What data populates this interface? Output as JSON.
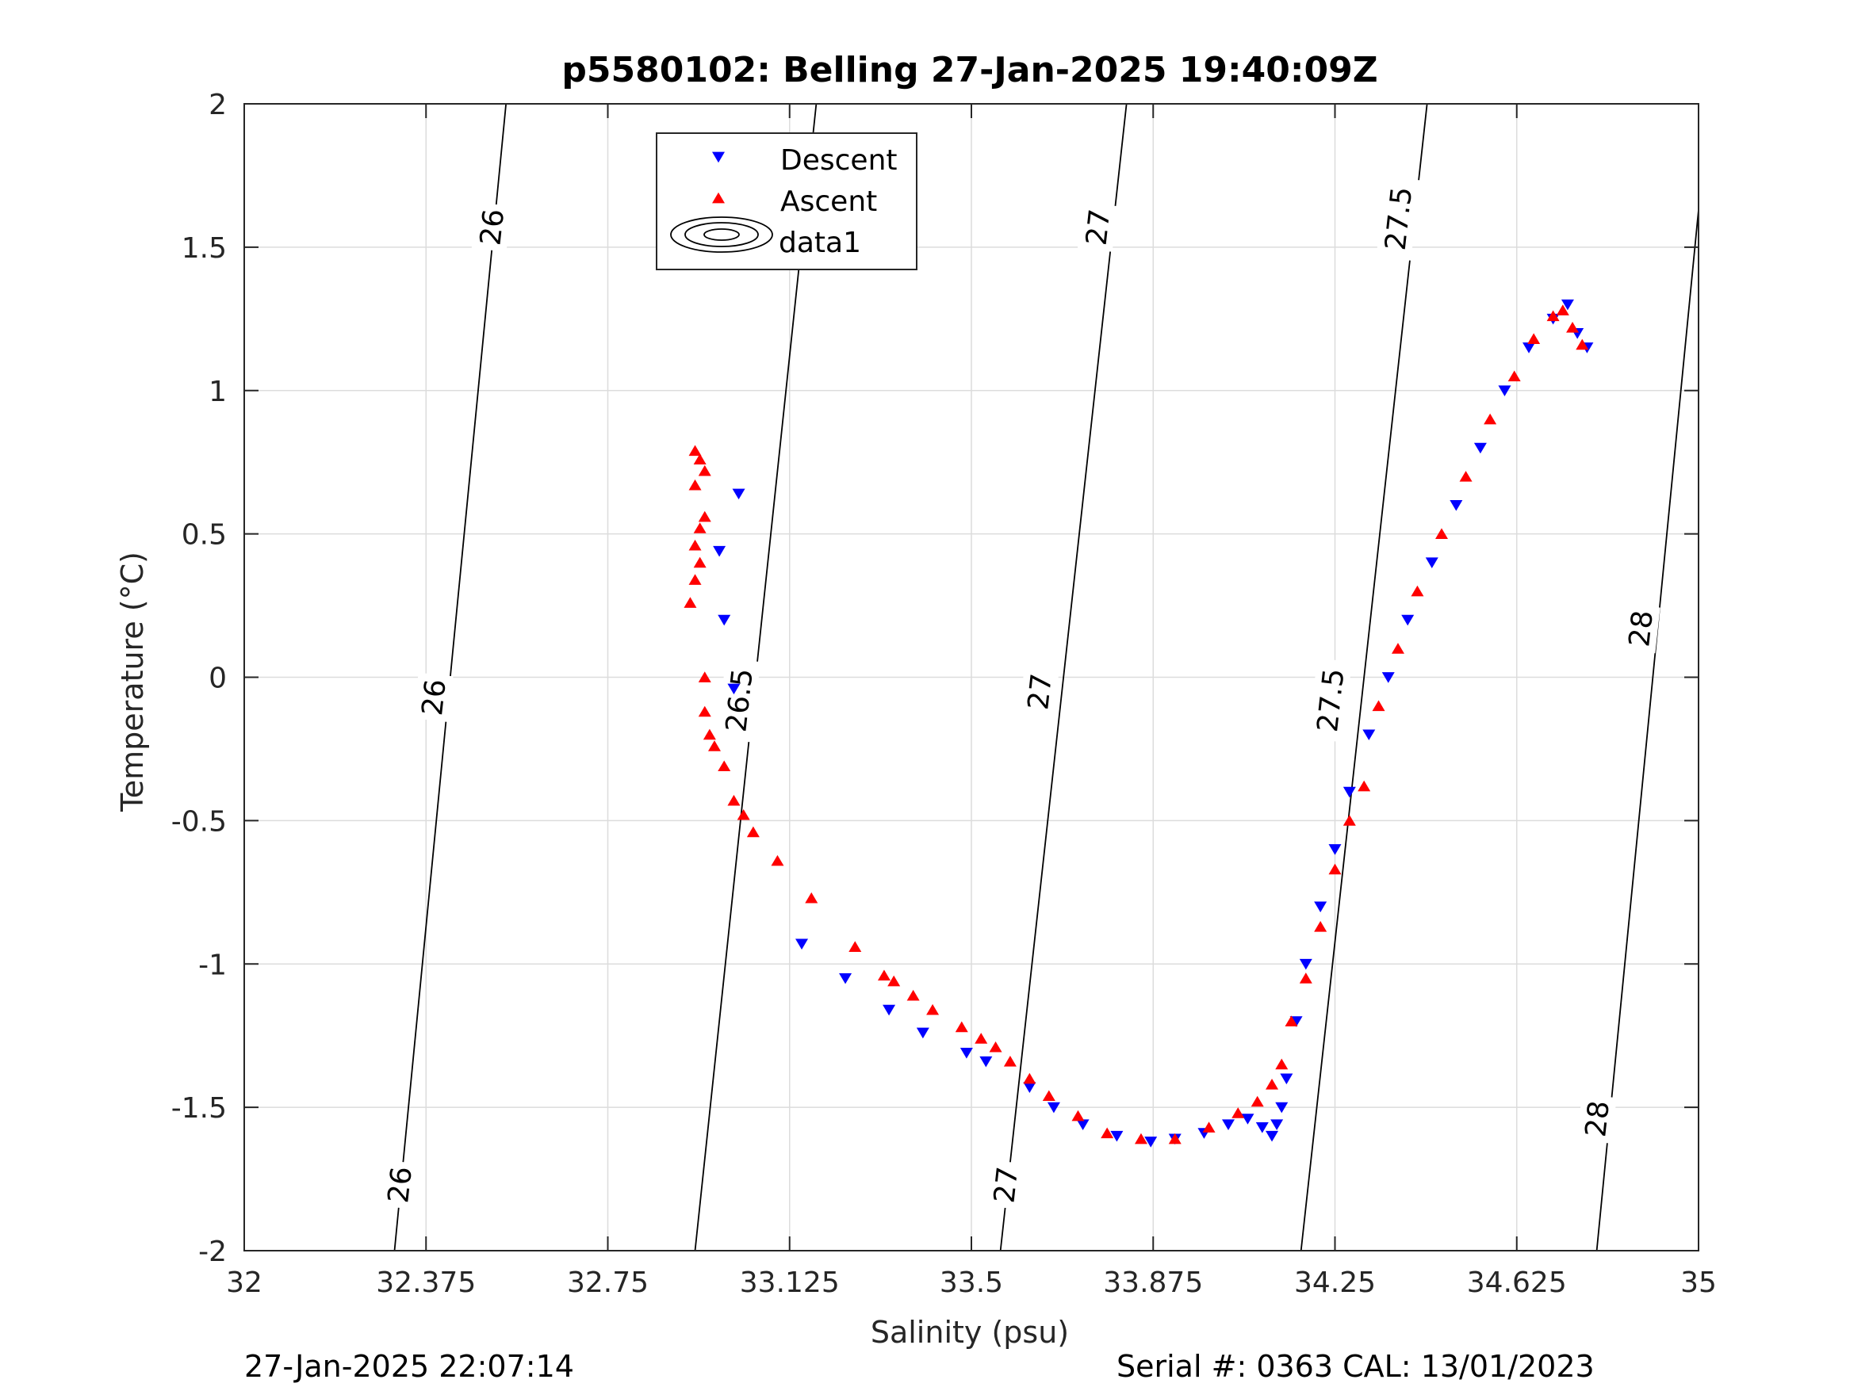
{
  "chart_data": {
    "type": "scatter",
    "title": "p5580102: Belling 27-Jan-2025 19:40:09Z",
    "xlabel": "Salinity (psu)",
    "ylabel": "Temperature (°C)",
    "xlim": [
      32,
      35
    ],
    "ylim": [
      -2,
      2
    ],
    "xticks": [
      "32",
      "32.375",
      "32.75",
      "33.125",
      "33.5",
      "33.875",
      "34.25",
      "34.625",
      "35"
    ],
    "yticks": [
      "-2",
      "-1.5",
      "-1",
      "-0.5",
      "0",
      "0.5",
      "1",
      "1.5",
      "2"
    ],
    "grid": true,
    "legend": {
      "placement": "top-center",
      "entries": [
        "Descent",
        "Ascent",
        "data1"
      ]
    },
    "colors": {
      "descent": "#0000ff",
      "ascent": "#ff0000",
      "contour": "#000000"
    },
    "contours": [
      {
        "level": "26",
        "line": [
          [
            32.31,
            -2
          ],
          [
            32.54,
            2
          ]
        ]
      },
      {
        "level": "26.5",
        "line": [
          [
            32.93,
            -2
          ],
          [
            33.18,
            2
          ]
        ]
      },
      {
        "level": "27",
        "line": [
          [
            33.56,
            -2
          ],
          [
            33.82,
            2
          ]
        ]
      },
      {
        "level": "27.5",
        "line": [
          [
            34.18,
            -2
          ],
          [
            34.44,
            2
          ]
        ]
      },
      {
        "level": "28",
        "line": [
          [
            34.79,
            -2
          ],
          [
            35.0,
            1.63
          ]
        ]
      }
    ],
    "contour_labels": [
      {
        "text": "26",
        "s": 32.51,
        "t": 1.57
      },
      {
        "text": "26",
        "s": 32.39,
        "t": -0.07
      },
      {
        "text": "26",
        "s": 32.32,
        "t": -1.77
      },
      {
        "text": "26.5",
        "s": 33.12,
        "t": 1.58
      },
      {
        "text": "26.5",
        "s": 33.02,
        "t": -0.08
      },
      {
        "text": "27",
        "s": 33.76,
        "t": 1.57
      },
      {
        "text": "27",
        "s": 33.64,
        "t": -0.05
      },
      {
        "text": "27",
        "s": 33.57,
        "t": -1.77
      },
      {
        "text": "27.5",
        "s": 34.38,
        "t": 1.6
      },
      {
        "text": "27.5",
        "s": 34.24,
        "t": -0.08
      },
      {
        "text": "28",
        "s": 34.88,
        "t": 0.17
      },
      {
        "text": "28",
        "s": 34.79,
        "t": -1.54
      }
    ],
    "series": [
      {
        "name": "Descent",
        "marker": "triangle-down",
        "points": [
          [
            33.02,
            0.64
          ],
          [
            32.98,
            0.44
          ],
          [
            32.99,
            0.2
          ],
          [
            33.01,
            -0.04
          ],
          [
            33.15,
            -0.93
          ],
          [
            33.24,
            -1.05
          ],
          [
            33.33,
            -1.16
          ],
          [
            33.4,
            -1.24
          ],
          [
            33.49,
            -1.31
          ],
          [
            33.53,
            -1.34
          ],
          [
            33.62,
            -1.43
          ],
          [
            33.67,
            -1.5
          ],
          [
            33.73,
            -1.56
          ],
          [
            33.8,
            -1.6
          ],
          [
            33.87,
            -1.62
          ],
          [
            33.92,
            -1.61
          ],
          [
            33.98,
            -1.59
          ],
          [
            34.03,
            -1.56
          ],
          [
            34.07,
            -1.54
          ],
          [
            34.1,
            -1.57
          ],
          [
            34.12,
            -1.6
          ],
          [
            34.13,
            -1.56
          ],
          [
            34.14,
            -1.5
          ],
          [
            34.15,
            -1.4
          ],
          [
            34.17,
            -1.2
          ],
          [
            34.19,
            -1.0
          ],
          [
            34.22,
            -0.8
          ],
          [
            34.25,
            -0.6
          ],
          [
            34.28,
            -0.4
          ],
          [
            34.32,
            -0.2
          ],
          [
            34.36,
            0.0
          ],
          [
            34.4,
            0.2
          ],
          [
            34.45,
            0.4
          ],
          [
            34.5,
            0.6
          ],
          [
            34.55,
            0.8
          ],
          [
            34.6,
            1.0
          ],
          [
            34.65,
            1.15
          ],
          [
            34.7,
            1.25
          ],
          [
            34.73,
            1.3
          ],
          [
            34.75,
            1.2
          ],
          [
            34.77,
            1.15
          ]
        ]
      },
      {
        "name": "Ascent",
        "marker": "triangle-up",
        "points": [
          [
            32.93,
            0.79
          ],
          [
            32.94,
            0.76
          ],
          [
            32.95,
            0.72
          ],
          [
            32.93,
            0.67
          ],
          [
            32.95,
            0.56
          ],
          [
            32.94,
            0.52
          ],
          [
            32.93,
            0.46
          ],
          [
            32.94,
            0.4
          ],
          [
            32.93,
            0.34
          ],
          [
            32.92,
            0.26
          ],
          [
            32.95,
            0.0
          ],
          [
            32.95,
            -0.12
          ],
          [
            32.96,
            -0.2
          ],
          [
            32.97,
            -0.24
          ],
          [
            32.99,
            -0.31
          ],
          [
            33.01,
            -0.43
          ],
          [
            33.03,
            -0.48
          ],
          [
            33.05,
            -0.54
          ],
          [
            33.1,
            -0.64
          ],
          [
            33.17,
            -0.77
          ],
          [
            33.26,
            -0.94
          ],
          [
            33.32,
            -1.04
          ],
          [
            33.34,
            -1.06
          ],
          [
            33.38,
            -1.11
          ],
          [
            33.42,
            -1.16
          ],
          [
            33.48,
            -1.22
          ],
          [
            33.52,
            -1.26
          ],
          [
            33.55,
            -1.29
          ],
          [
            33.58,
            -1.34
          ],
          [
            33.62,
            -1.4
          ],
          [
            33.66,
            -1.46
          ],
          [
            33.72,
            -1.53
          ],
          [
            33.78,
            -1.59
          ],
          [
            33.85,
            -1.61
          ],
          [
            33.92,
            -1.61
          ],
          [
            33.99,
            -1.57
          ],
          [
            34.05,
            -1.52
          ],
          [
            34.09,
            -1.48
          ],
          [
            34.12,
            -1.42
          ],
          [
            34.14,
            -1.35
          ],
          [
            34.16,
            -1.2
          ],
          [
            34.19,
            -1.05
          ],
          [
            34.22,
            -0.87
          ],
          [
            34.25,
            -0.67
          ],
          [
            34.28,
            -0.5
          ],
          [
            34.31,
            -0.38
          ],
          [
            34.34,
            -0.1
          ],
          [
            34.38,
            0.1
          ],
          [
            34.42,
            0.3
          ],
          [
            34.47,
            0.5
          ],
          [
            34.52,
            0.7
          ],
          [
            34.57,
            0.9
          ],
          [
            34.62,
            1.05
          ],
          [
            34.66,
            1.18
          ],
          [
            34.7,
            1.26
          ],
          [
            34.72,
            1.28
          ],
          [
            34.74,
            1.22
          ],
          [
            34.76,
            1.16
          ]
        ]
      }
    ]
  },
  "footer": {
    "timestamp": "27-Jan-2025 22:07:14",
    "serial": "Serial #: 0363  CAL: 13/01/2023"
  }
}
